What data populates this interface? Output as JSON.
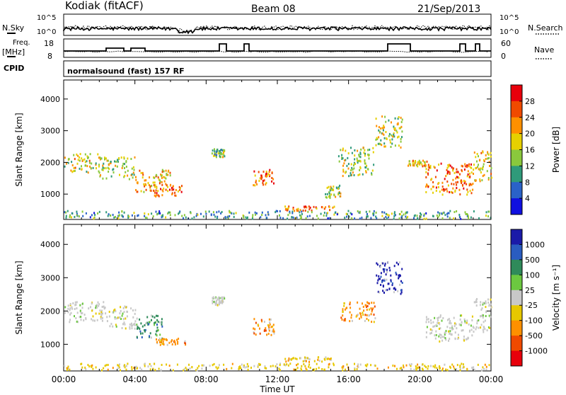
{
  "header": {
    "station": "Kodiak (fitACF)",
    "beam": "Beam 08",
    "date": "21/Sep/2013"
  },
  "top_strips": {
    "nsky_label": "N.Sky",
    "nsky_ticks": [
      "10^5",
      "10^0"
    ],
    "nsearch_label": "N.Search",
    "nsearch_ticks": [
      "10^5",
      "10^0"
    ],
    "freq_label": "Freq.",
    "freq_unit": "[MHz]",
    "freq_ticks": [
      "18",
      "8"
    ],
    "nave_label": "Nave",
    "nave_ticks": [
      "60",
      "0"
    ],
    "cpid_label": "CPID",
    "cpid_value": "normalsound (fast) 157 RF"
  },
  "chart_data": [
    {
      "type": "heatmap",
      "name": "power",
      "ylabel": "Slant Range [km]",
      "ylim": [
        200,
        4600
      ],
      "yticks": [
        1000,
        2000,
        3000,
        4000
      ],
      "xlim": [
        0,
        24
      ],
      "colorbar": {
        "label": "Power [dB]",
        "ticks": [
          "28",
          "24",
          "20",
          "16",
          "12",
          "8",
          "4"
        ],
        "colors": [
          "#e8000b",
          "#f04a00",
          "#ff9000",
          "#e6d000",
          "#8ac83c",
          "#2f9a7a",
          "#2a62c8",
          "#1010e0"
        ]
      },
      "regions": [
        {
          "x": [
            0.0,
            2.0
          ],
          "y": [
            1700,
            2300
          ],
          "level": 0.55
        },
        {
          "x": [
            2.0,
            4.0
          ],
          "y": [
            1500,
            2200
          ],
          "level": 0.5
        },
        {
          "x": [
            4.0,
            6.0
          ],
          "y": [
            1100,
            1800
          ],
          "level": 0.65
        },
        {
          "x": [
            5.0,
            6.6
          ],
          "y": [
            950,
            1350
          ],
          "level": 0.8
        },
        {
          "x": [
            8.3,
            9.0
          ],
          "y": [
            2200,
            2450
          ],
          "level": 0.4
        },
        {
          "x": [
            10.6,
            11.8
          ],
          "y": [
            1300,
            1800
          ],
          "level": 0.75
        },
        {
          "x": [
            12.4,
            15.2
          ],
          "y": [
            500,
            650
          ],
          "level": 0.85
        },
        {
          "x": [
            14.6,
            15.6
          ],
          "y": [
            900,
            1300
          ],
          "level": 0.45
        },
        {
          "x": [
            15.4,
            17.4
          ],
          "y": [
            1600,
            2500
          ],
          "level": 0.45
        },
        {
          "x": [
            17.5,
            19.0
          ],
          "y": [
            2500,
            3500
          ],
          "level": 0.5
        },
        {
          "x": [
            19.3,
            20.4
          ],
          "y": [
            1900,
            2100
          ],
          "level": 0.7
        },
        {
          "x": [
            20.3,
            23.0
          ],
          "y": [
            1000,
            2000
          ],
          "level": 0.78
        },
        {
          "x": [
            23.0,
            24.0
          ],
          "y": [
            1400,
            2400
          ],
          "level": 0.6
        },
        {
          "x": [
            0.0,
            24.0
          ],
          "y": [
            250,
            500
          ],
          "level": 0.3
        }
      ]
    },
    {
      "type": "heatmap",
      "name": "velocity",
      "ylabel": "Slant Range [km]",
      "ylim": [
        200,
        4600
      ],
      "yticks": [
        1000,
        2000,
        3000,
        4000
      ],
      "xlim": [
        0,
        24
      ],
      "xticks": [
        "00:00",
        "04:00",
        "08:00",
        "12:00",
        "16:00",
        "20:00",
        "00:00"
      ],
      "xlabel": "Time UT",
      "colorbar": {
        "label": "Velocity [m s⁻¹]",
        "ticks": [
          "1000",
          "500",
          "100",
          "25",
          "-25",
          "-100",
          "-500",
          "-1000"
        ],
        "colors": [
          "#1a1aa8",
          "#2a5cc0",
          "#2f8a5a",
          "#6cc840",
          "#c8c8c8",
          "#e6c800",
          "#ff9000",
          "#f04a00",
          "#e8000b"
        ]
      },
      "regions": [
        {
          "x": [
            0.0,
            2.5
          ],
          "y": [
            1700,
            2300
          ],
          "vel": "ground"
        },
        {
          "x": [
            2.5,
            4.0
          ],
          "y": [
            1500,
            2200
          ],
          "vel": "ground"
        },
        {
          "x": [
            4.0,
            5.5
          ],
          "y": [
            1200,
            1900
          ],
          "vel": "100"
        },
        {
          "x": [
            5.0,
            6.8
          ],
          "y": [
            1000,
            1200
          ],
          "vel": "-500"
        },
        {
          "x": [
            8.3,
            9.0
          ],
          "y": [
            2200,
            2450
          ],
          "vel": "ground"
        },
        {
          "x": [
            10.6,
            11.8
          ],
          "y": [
            1300,
            1800
          ],
          "vel": "-500"
        },
        {
          "x": [
            12.4,
            15.2
          ],
          "y": [
            500,
            650
          ],
          "vel": "-100"
        },
        {
          "x": [
            15.4,
            17.5
          ],
          "y": [
            1700,
            2300
          ],
          "vel": "-500"
        },
        {
          "x": [
            17.5,
            19.0
          ],
          "y": [
            2500,
            3500
          ],
          "vel": "1000"
        },
        {
          "x": [
            20.3,
            23.0
          ],
          "y": [
            1100,
            1900
          ],
          "vel": "ground"
        },
        {
          "x": [
            23.0,
            24.0
          ],
          "y": [
            1400,
            2400
          ],
          "vel": "ground"
        },
        {
          "x": [
            0.0,
            24.0
          ],
          "y": [
            250,
            450
          ],
          "vel": "-100"
        }
      ]
    }
  ]
}
